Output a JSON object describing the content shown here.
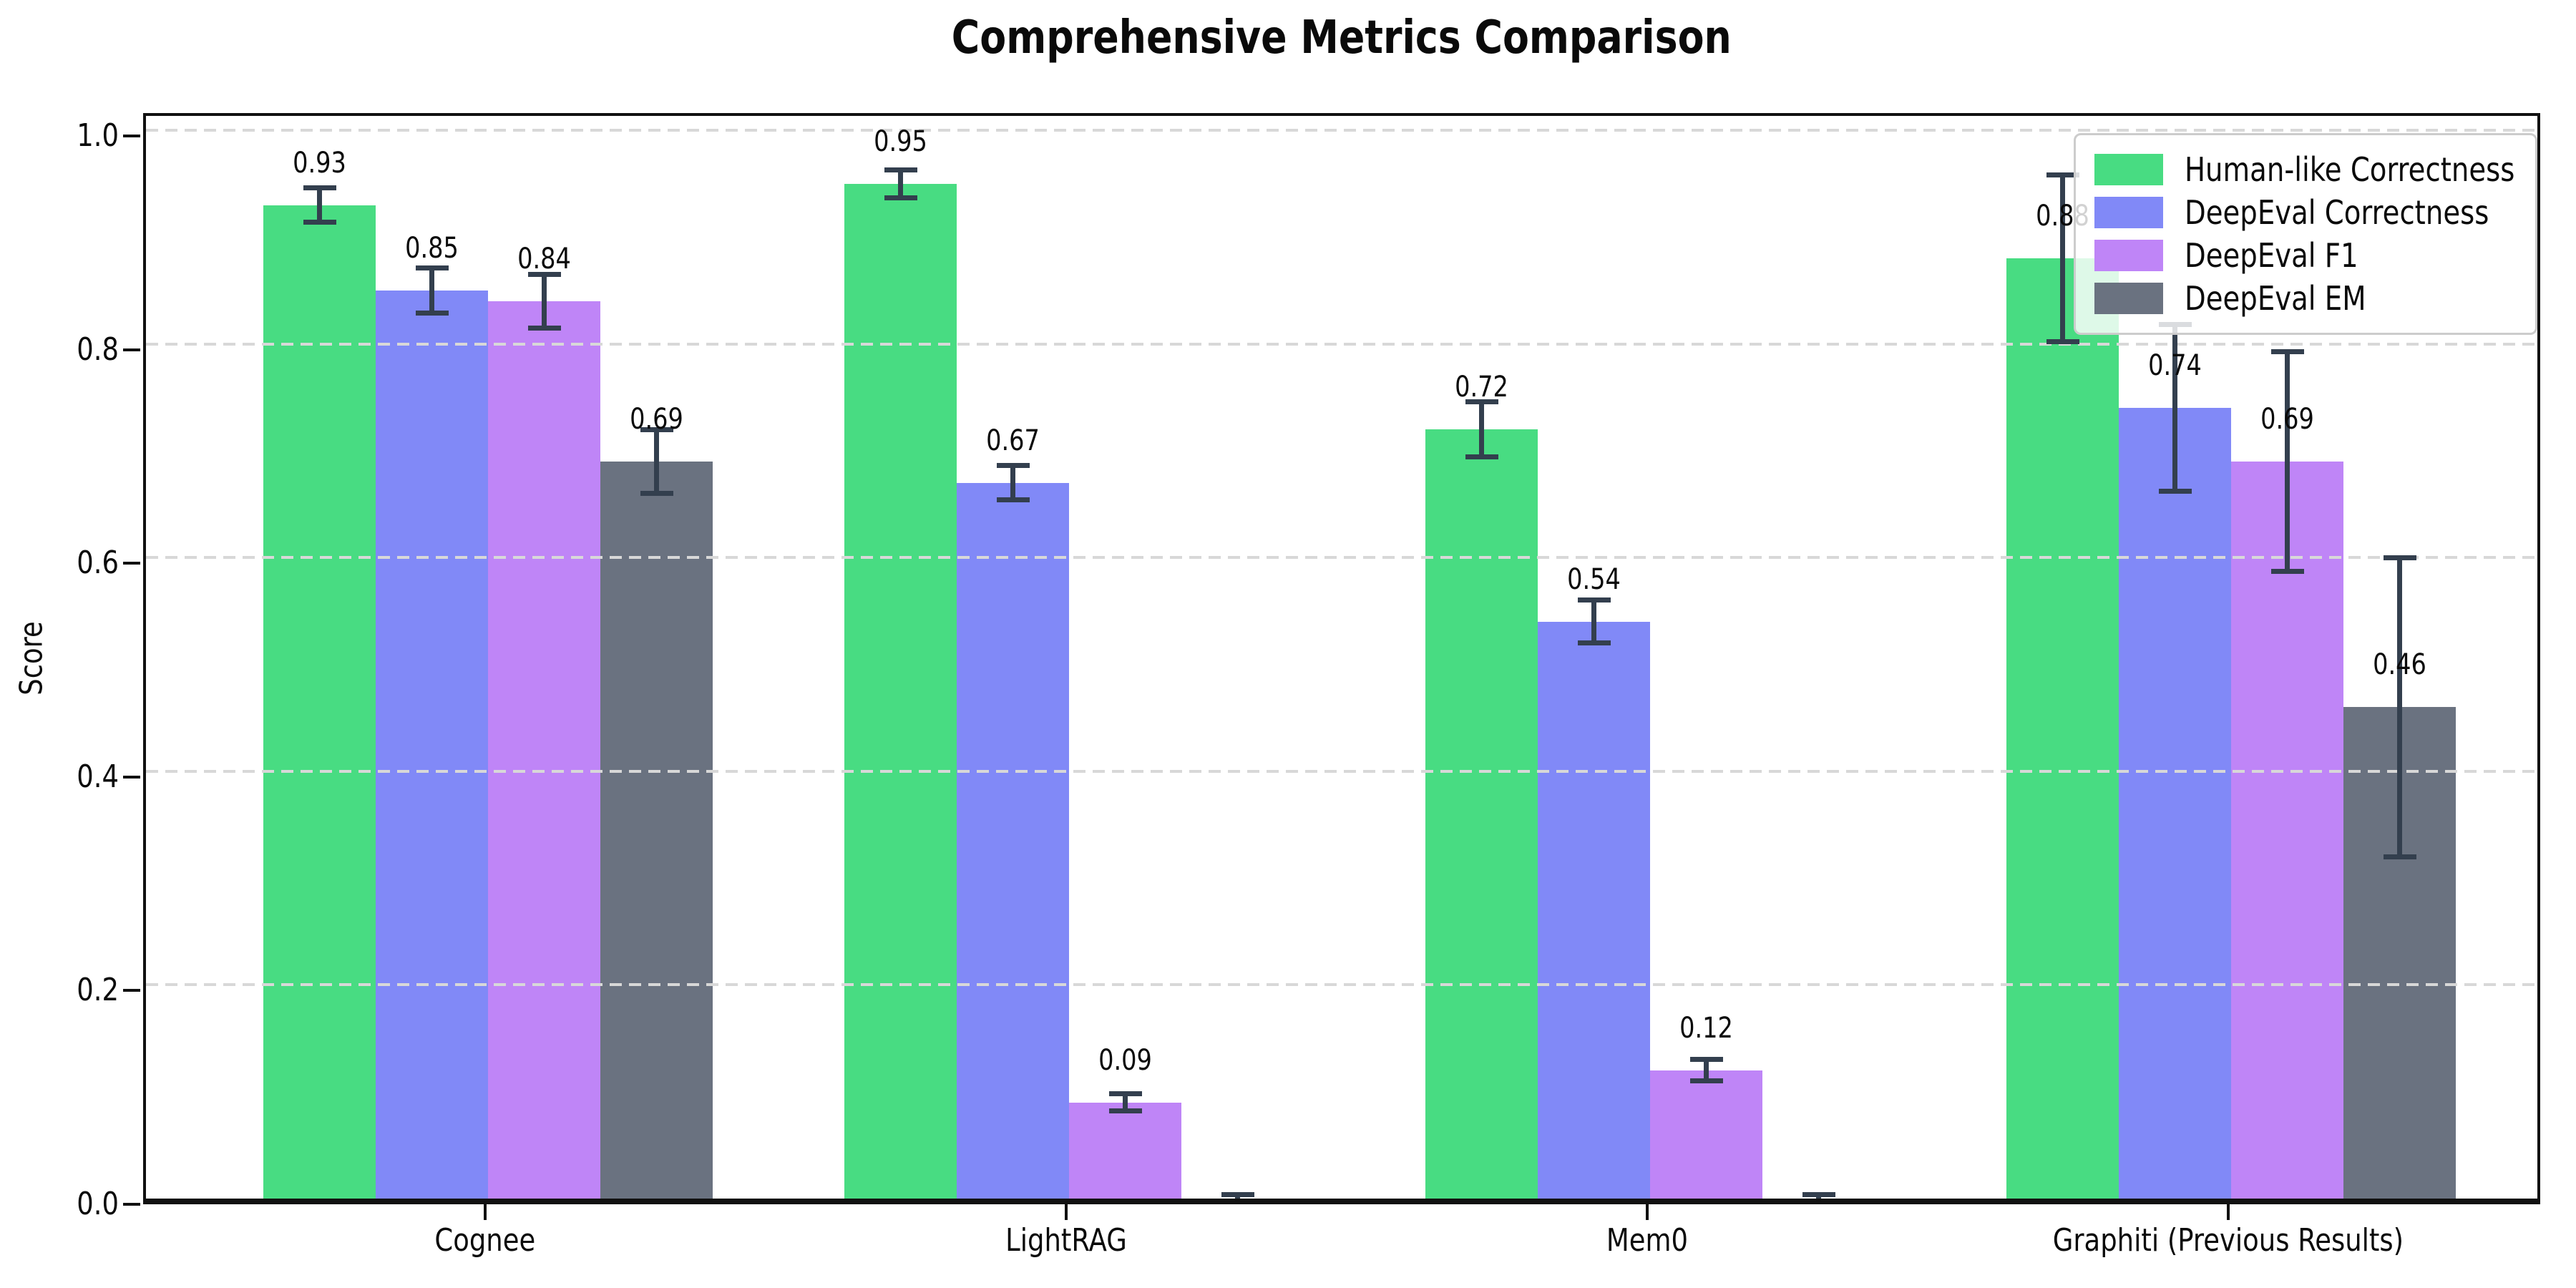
{
  "chart_data": {
    "type": "bar",
    "title": "Comprehensive Metrics Comparison",
    "ylabel": "Score",
    "xlabel": "",
    "categories": [
      "Cognee",
      "LightRAG",
      "Mem0",
      "Graphiti (Previous Results)"
    ],
    "series": [
      {
        "name": "Human-like Correctness",
        "color": "#48dc82",
        "values": [
          0.93,
          0.95,
          0.72,
          0.88
        ],
        "errors": [
          0.016,
          0.013,
          0.026,
          0.078
        ],
        "labels": [
          "0.93",
          "0.95",
          "0.72",
          "0.88"
        ]
      },
      {
        "name": "DeepEval Correctness",
        "color": "#8189f7",
        "values": [
          0.85,
          0.67,
          0.54,
          0.74
        ],
        "errors": [
          0.021,
          0.016,
          0.02,
          0.078
        ],
        "labels": [
          "0.85",
          "0.67",
          "0.54",
          "0.74"
        ]
      },
      {
        "name": "DeepEval F1",
        "color": "#bf85f7",
        "values": [
          0.84,
          0.09,
          0.12,
          0.69
        ],
        "errors": [
          0.025,
          0.008,
          0.01,
          0.103
        ],
        "labels": [
          "0.84",
          "0.09",
          "0.12",
          "0.69"
        ]
      },
      {
        "name": "DeepEval EM",
        "color": "#6a7280",
        "values": [
          0.69,
          0.0,
          0.0,
          0.46
        ],
        "errors": [
          0.03,
          0.004,
          0.004,
          0.14
        ],
        "labels": [
          "0.69",
          "",
          "",
          "0.46"
        ]
      }
    ],
    "yticks": [
      "0.0",
      "0.2",
      "0.4",
      "0.6",
      "0.8",
      "1.0"
    ],
    "ylim": [
      0.0,
      1.02
    ],
    "grid": "horizontal-dashed",
    "grid_color": "#d8d8d8",
    "errorbar_color": "#333f4e",
    "legend_position": "top-right",
    "background_color": "#ffffff"
  }
}
